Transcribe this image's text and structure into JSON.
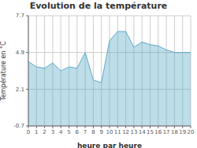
{
  "chart_data": {
    "type": "area",
    "title": "Evolution de la température",
    "x_label": "heure par heure",
    "y_label": "Température en °C",
    "x": [
      0,
      1,
      2,
      3,
      4,
      5,
      6,
      7,
      8,
      9,
      10,
      11,
      12,
      13,
      14,
      15,
      16,
      17,
      18,
      19,
      20
    ],
    "values": [
      4.2,
      3.8,
      3.7,
      4.1,
      3.5,
      3.8,
      3.7,
      4.9,
      2.8,
      2.6,
      5.8,
      6.5,
      6.5,
      5.3,
      5.7,
      5.5,
      5.4,
      5.1,
      4.9,
      4.9,
      4.9
    ],
    "color": "#5aaac8",
    "xlim": [
      0,
      20
    ],
    "xticks": [
      0,
      1,
      2,
      3,
      4,
      5,
      6,
      7,
      8,
      9,
      10,
      11,
      12,
      13,
      14,
      15,
      16,
      17,
      18,
      19,
      20
    ],
    "ylim": [
      -0.7,
      7.7
    ],
    "yticks": [
      -0.7,
      2.1,
      4.9,
      7.7
    ],
    "grid": true
  }
}
